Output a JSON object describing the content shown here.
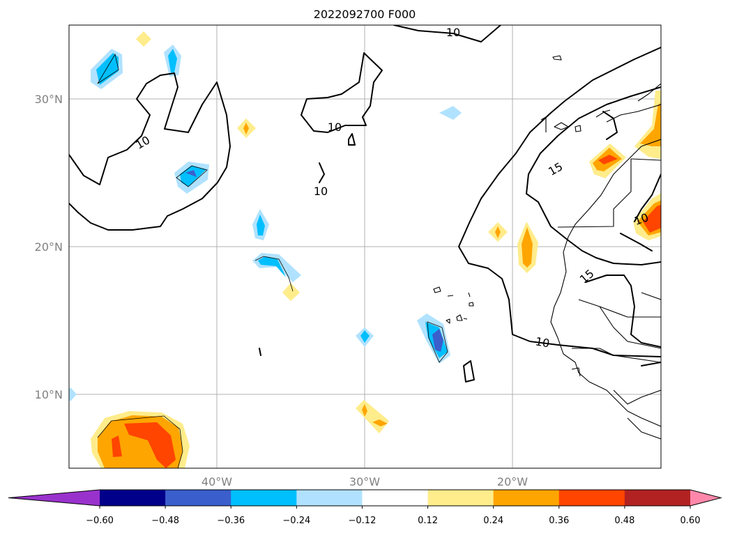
{
  "title": "2022092700 F000",
  "map": {
    "lon_labels": [
      "40°W",
      "30°W",
      "20°W"
    ],
    "lat_labels": [
      "30°N",
      "20°N",
      "10°N"
    ],
    "contour_labels": [
      "10",
      "10",
      "10",
      "10",
      "15",
      "15",
      "10",
      "10"
    ]
  },
  "colorbar": {
    "ticks": [
      "−0.60",
      "−0.48",
      "−0.36",
      "−0.24",
      "−0.12",
      "0.12",
      "0.24",
      "0.36",
      "0.48",
      "0.60"
    ],
    "colors": [
      "#9932cc",
      "#00008b",
      "#3a5fcd",
      "#00bfff",
      "#b0e2ff",
      "#ffffff",
      "#ffec8b",
      "#ffa500",
      "#ff4500",
      "#b22222",
      "#ff88aa"
    ]
  }
}
